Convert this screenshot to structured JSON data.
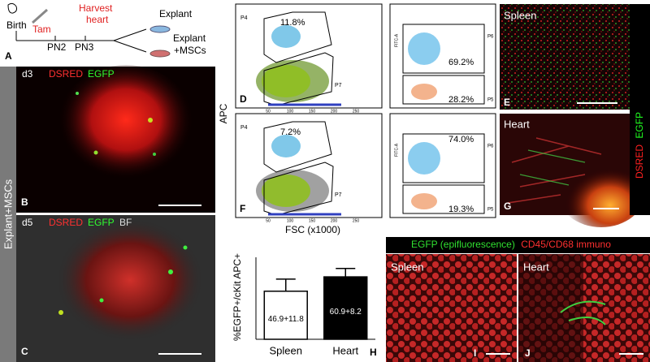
{
  "timeline": {
    "panel": "A",
    "events": [
      "Birth",
      "Tam",
      "Harvest",
      "heart"
    ],
    "stages": [
      "PN2",
      "PN3"
    ],
    "outcomes": [
      "Explant",
      "Explant",
      "+MSCs"
    ]
  },
  "side_label": "Explant+MSCs",
  "explant_images": [
    {
      "panel": "B",
      "day": "d3",
      "stains": [
        "DSRED",
        "EGFP"
      ]
    },
    {
      "panel": "C",
      "day": "d5",
      "stains": [
        "DSRED",
        "EGFP",
        "BF"
      ]
    }
  ],
  "flow": {
    "y_label": "APC",
    "x_label": "FSC (x1000)",
    "right_y_label": "FITC-A",
    "xticks": [
      "50",
      "100",
      "150",
      "200",
      "250"
    ],
    "panels": [
      {
        "panel": "D",
        "gates": [
          "P4",
          "P7"
        ],
        "percent": "11.8%",
        "sub_gates": [
          "P6",
          "P5"
        ],
        "sub_percents": [
          "69.2%",
          "28.2%"
        ]
      },
      {
        "panel": "F",
        "gates": [
          "P4",
          "P7"
        ],
        "percent": "7.2%",
        "sub_gates": [
          "P6",
          "P5"
        ],
        "sub_percents": [
          "74.0%",
          "19.3%"
        ]
      }
    ]
  },
  "tissue_images": [
    {
      "panel": "E",
      "tissue": "Spleen"
    },
    {
      "panel": "G",
      "tissue": "Heart"
    }
  ],
  "tissue_stains": [
    "DSRED",
    "EGFP"
  ],
  "chart_data": {
    "type": "bar",
    "panel": "H",
    "y_label": "%EGFP+/cKit APC+",
    "categories": [
      "Spleen",
      "Heart"
    ],
    "values": [
      46.9,
      60.9
    ],
    "errors": [
      11.8,
      8.2
    ],
    "value_labels": [
      "46.9+11.8",
      "60.9+8.2"
    ],
    "colors": [
      "#ffffff",
      "#000000"
    ],
    "ylim": [
      0,
      80
    ]
  },
  "immuno": {
    "header": [
      "EGFP (epifluorescence)",
      "CD45/CD68 immuno"
    ],
    "panels": [
      {
        "panel": "I",
        "tissue": "Spleen"
      },
      {
        "panel": "J",
        "tissue": "Heart"
      }
    ]
  }
}
